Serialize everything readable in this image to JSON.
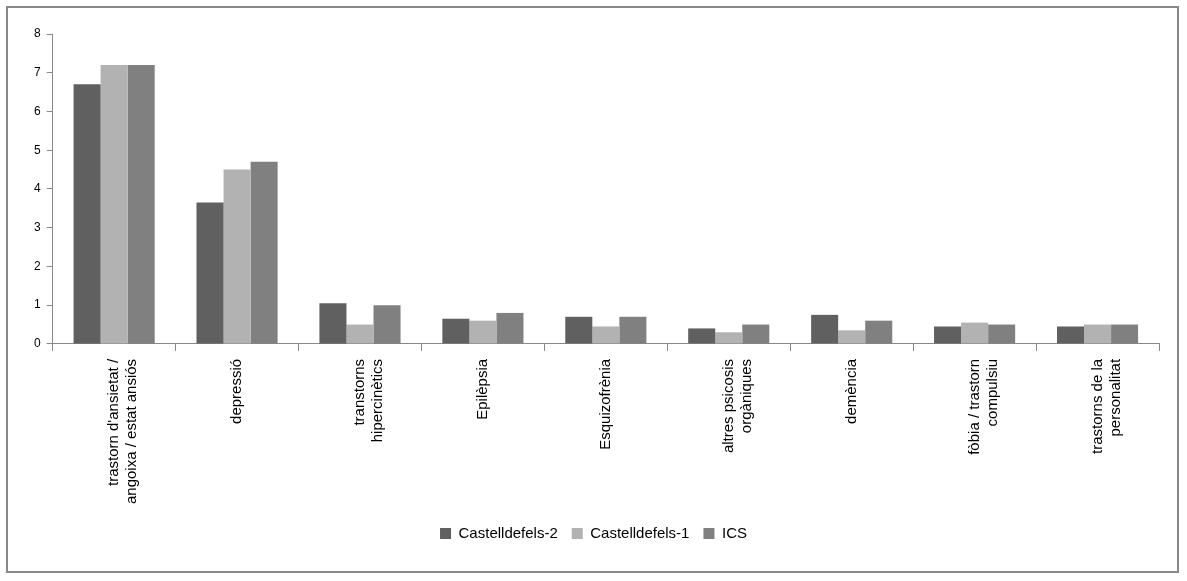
{
  "chart_data": {
    "type": "bar",
    "categories": [
      "trastorn d'ansietat / angoixa / estat ansiós",
      "depressió",
      "transtorns hipercinètics",
      "Epilèpsia",
      "Esquizofrènia",
      "altres psicosis orgàniques",
      "demència",
      "fòbia / trastorn compulsiu",
      "trastorns de la personalitat"
    ],
    "series": [
      {
        "name": "Castelldefels-2",
        "color": "#606060",
        "values": [
          6.7,
          3.65,
          1.05,
          0.65,
          0.7,
          0.4,
          0.75,
          0.45,
          0.45
        ]
      },
      {
        "name": "Castelldefels-1",
        "color": "#b2b2b2",
        "values": [
          7.2,
          4.5,
          0.5,
          0.6,
          0.45,
          0.3,
          0.35,
          0.55,
          0.5
        ]
      },
      {
        "name": "ICS",
        "color": "#808080",
        "values": [
          7.2,
          4.7,
          1.0,
          0.8,
          0.7,
          0.5,
          0.6,
          0.5,
          0.5
        ]
      }
    ],
    "ylim": [
      0,
      8
    ],
    "yticks": [
      0,
      1,
      2,
      3,
      4,
      5,
      6,
      7,
      8
    ],
    "grid": false,
    "legend": "bottom"
  }
}
